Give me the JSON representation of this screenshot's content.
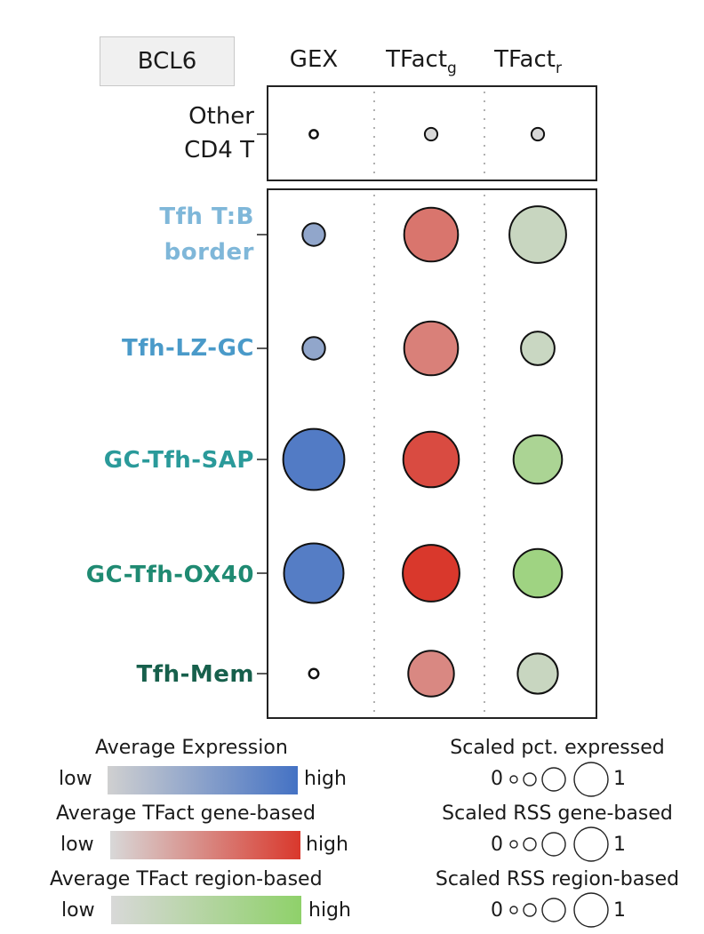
{
  "gene_label": "BCL6",
  "columns": [
    {
      "main": "GEX",
      "sub": ""
    },
    {
      "main": "TFact",
      "sub": "g"
    },
    {
      "main": "TFact",
      "sub": "r"
    }
  ],
  "rows": [
    {
      "lines": [
        "Other",
        "CD4 T"
      ],
      "color": "#1a1a1a",
      "bold": false
    },
    {
      "lines": [
        "Tfh T:B",
        "border"
      ],
      "color": "#7fb7d9",
      "bold": true
    },
    {
      "lines": [
        "Tfh-LZ-GC"
      ],
      "color": "#4a9ac9",
      "bold": true
    },
    {
      "lines": [
        "GC-Tfh-SAP"
      ],
      "color": "#2a9a9a",
      "bold": true
    },
    {
      "lines": [
        "GC-Tfh-OX40"
      ],
      "color": "#1f8a72",
      "bold": true
    },
    {
      "lines": [
        "Tfh-Mem"
      ],
      "color": "#17604c",
      "bold": true
    }
  ],
  "chart_data": {
    "type": "dot",
    "categories": [
      "Other CD4 T",
      "Tfh T:B border",
      "Tfh-LZ-GC",
      "GC-Tfh-SAP",
      "GC-Tfh-OX40",
      "Tfh-Mem"
    ],
    "series": [
      {
        "name": "GEX",
        "color_scale": [
          "#d0d0d0",
          "#4472c4"
        ],
        "size": [
          0.02,
          0.28,
          0.28,
          0.98,
          0.95,
          0.04
        ],
        "color": [
          0.0,
          0.45,
          0.45,
          0.9,
          0.88,
          0.0
        ]
      },
      {
        "name": "TFactg",
        "color_scale": [
          "#d8d8d8",
          "#d9382c"
        ],
        "size": [
          0.1,
          0.85,
          0.85,
          0.88,
          0.9,
          0.7
        ],
        "color": [
          0.0,
          0.62,
          0.55,
          0.88,
          1.0,
          0.5
        ]
      },
      {
        "name": "TFactr",
        "color_scale": [
          "#d8d8d8",
          "#8fd16a"
        ],
        "size": [
          0.1,
          0.9,
          0.48,
          0.75,
          0.75,
          0.6
        ],
        "color": [
          0.0,
          0.22,
          0.2,
          0.62,
          0.78,
          0.22
        ]
      }
    ],
    "color_legends": [
      {
        "title": "Average Expression",
        "low": "low",
        "high": "high",
        "from": "#d0d0d0",
        "to": "#4472c4"
      },
      {
        "title": "Average TFact gene-based",
        "low": "low",
        "high": "high",
        "from": "#d8d8d8",
        "to": "#d9382c"
      },
      {
        "title": "Average TFact region-based",
        "low": "low",
        "high": "high",
        "from": "#d8d8d8",
        "to": "#8fd16a"
      }
    ],
    "size_legends": [
      {
        "title": "Scaled pct. expressed",
        "min": "0",
        "max": "1"
      },
      {
        "title": "Scaled RSS gene-based",
        "min": "0",
        "max": "1"
      },
      {
        "title": "Scaled RSS region-based",
        "min": "0",
        "max": "1"
      }
    ]
  }
}
